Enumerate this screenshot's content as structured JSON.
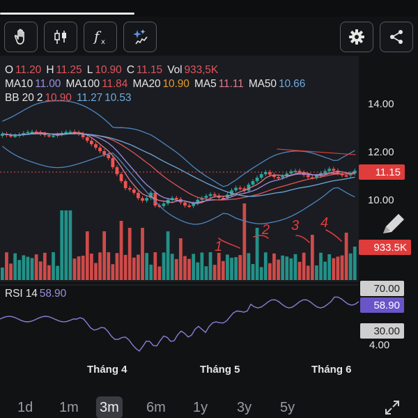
{
  "toolbar": {
    "left_buttons": [
      "hand-icon",
      "candlestick-icon",
      "function-icon",
      "sparkle-draw-icon"
    ],
    "right_buttons": [
      "gear-icon",
      "share-icon"
    ]
  },
  "ohlc": {
    "o_label": "O",
    "o_value": "11.20",
    "h_label": "H",
    "h_value": "11.25",
    "l_label": "L",
    "l_value": "10.90",
    "c_label": "C",
    "c_value": "11.15",
    "vol_label": "Vol",
    "vol_value": "933,5K"
  },
  "ma": {
    "ma10_label": "MA10",
    "ma10_value": "11.00",
    "ma100_label": "MA100",
    "ma100_value": "11.84",
    "ma20_label": "MA20",
    "ma20_value": "10.90",
    "ma5_label": "MA5",
    "ma5_value": "11.11",
    "ma50_label": "MA50",
    "ma50_value": "10.66"
  },
  "bb": {
    "label": "BB 20 2",
    "v1": "10.90",
    "v2": "11.27",
    "v3": "10.53"
  },
  "price_axis": [
    "14.00",
    "12.00",
    "10.00"
  ],
  "current_price": "11.15",
  "current_volume": "933.5K",
  "rsi": {
    "label": "RSI 14",
    "value": "58.90",
    "levels": [
      "70.00",
      "30.00"
    ],
    "min_label": "4.00"
  },
  "annotations": [
    "1",
    "2",
    "3",
    "4"
  ],
  "x_labels": [
    "Tháng 4",
    "Tháng 5",
    "Tháng 6"
  ],
  "periods": [
    "1d",
    "1m",
    "3m",
    "6m",
    "1y",
    "3y",
    "5y"
  ],
  "active_period": "3m",
  "colors": {
    "up": "#26a69a",
    "down": "#ef5350",
    "rsi": "#8a7fd6",
    "badge_red": "#e03c3c",
    "badge_purple": "#6a55c8"
  }
}
